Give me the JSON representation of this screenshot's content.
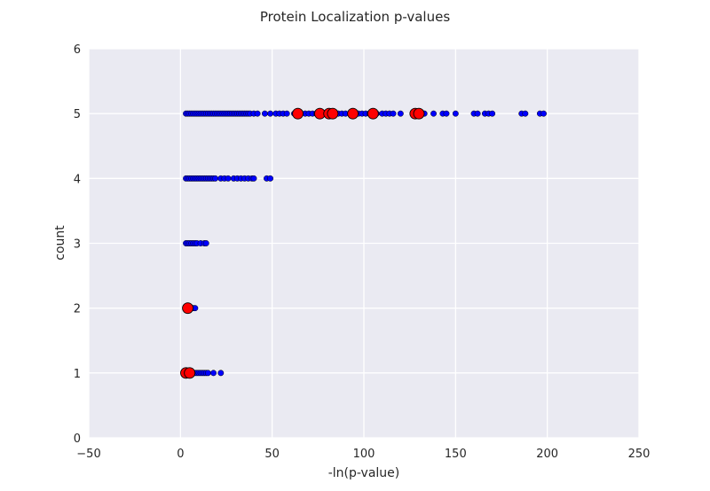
{
  "chart_data": {
    "type": "scatter",
    "title": "Protein Localization p-values",
    "xlabel": "-ln(p-value)",
    "ylabel": "count",
    "xlim": [
      -50,
      250
    ],
    "ylim": [
      0,
      6
    ],
    "xticks": [
      "−50",
      "0",
      "50",
      "100",
      "150",
      "200",
      "250"
    ],
    "xtick_values": [
      -50,
      0,
      50,
      100,
      150,
      200,
      250
    ],
    "yticks": [
      "0",
      "1",
      "2",
      "3",
      "4",
      "5",
      "6"
    ],
    "ytick_values": [
      0,
      1,
      2,
      3,
      4,
      5,
      6
    ],
    "grid": true,
    "background": "#eaeaf2",
    "series": [
      {
        "color": "#0000ff",
        "marker": "small-circle",
        "points": [
          [
            3,
            5
          ],
          [
            4,
            5
          ],
          [
            5,
            5
          ],
          [
            6,
            5
          ],
          [
            7,
            5
          ],
          [
            8,
            5
          ],
          [
            9,
            5
          ],
          [
            10,
            5
          ],
          [
            11,
            5
          ],
          [
            12,
            5
          ],
          [
            13,
            5
          ],
          [
            14,
            5
          ],
          [
            15,
            5
          ],
          [
            16,
            5
          ],
          [
            17,
            5
          ],
          [
            18,
            5
          ],
          [
            19,
            5
          ],
          [
            20,
            5
          ],
          [
            21,
            5
          ],
          [
            22,
            5
          ],
          [
            23,
            5
          ],
          [
            24,
            5
          ],
          [
            25,
            5
          ],
          [
            26,
            5
          ],
          [
            27,
            5
          ],
          [
            28,
            5
          ],
          [
            29,
            5
          ],
          [
            30,
            5
          ],
          [
            31,
            5
          ],
          [
            32,
            5
          ],
          [
            33,
            5
          ],
          [
            34,
            5
          ],
          [
            35,
            5
          ],
          [
            36,
            5
          ],
          [
            37,
            5
          ],
          [
            38,
            5
          ],
          [
            40,
            5
          ],
          [
            42,
            5
          ],
          [
            46,
            5
          ],
          [
            49,
            5
          ],
          [
            52,
            5
          ],
          [
            54,
            5
          ],
          [
            56,
            5
          ],
          [
            58,
            5
          ],
          [
            62,
            5
          ],
          [
            65,
            5
          ],
          [
            68,
            5
          ],
          [
            70,
            5
          ],
          [
            72,
            5
          ],
          [
            74,
            5
          ],
          [
            78,
            5
          ],
          [
            80,
            5
          ],
          [
            84,
            5
          ],
          [
            86,
            5
          ],
          [
            88,
            5
          ],
          [
            90,
            5
          ],
          [
            95,
            5
          ],
          [
            97,
            5
          ],
          [
            99,
            5
          ],
          [
            101,
            5
          ],
          [
            103,
            5
          ],
          [
            107,
            5
          ],
          [
            110,
            5
          ],
          [
            112,
            5
          ],
          [
            114,
            5
          ],
          [
            116,
            5
          ],
          [
            120,
            5
          ],
          [
            127,
            5
          ],
          [
            130,
            5
          ],
          [
            133,
            5
          ],
          [
            138,
            5
          ],
          [
            143,
            5
          ],
          [
            145,
            5
          ],
          [
            150,
            5
          ],
          [
            160,
            5
          ],
          [
            162,
            5
          ],
          [
            166,
            5
          ],
          [
            168,
            5
          ],
          [
            170,
            5
          ],
          [
            186,
            5
          ],
          [
            188,
            5
          ],
          [
            196,
            5
          ],
          [
            198,
            5
          ],
          [
            3,
            4
          ],
          [
            4,
            4
          ],
          [
            5,
            4
          ],
          [
            6,
            4
          ],
          [
            7,
            4
          ],
          [
            8,
            4
          ],
          [
            9,
            4
          ],
          [
            10,
            4
          ],
          [
            11,
            4
          ],
          [
            12,
            4
          ],
          [
            13,
            4
          ],
          [
            14,
            4
          ],
          [
            15,
            4
          ],
          [
            16,
            4
          ],
          [
            17,
            4
          ],
          [
            18,
            4
          ],
          [
            19,
            4
          ],
          [
            22,
            4
          ],
          [
            24,
            4
          ],
          [
            26,
            4
          ],
          [
            29,
            4
          ],
          [
            31,
            4
          ],
          [
            33,
            4
          ],
          [
            35,
            4
          ],
          [
            37,
            4
          ],
          [
            39,
            4
          ],
          [
            40,
            4
          ],
          [
            47,
            4
          ],
          [
            49,
            4
          ],
          [
            3,
            3
          ],
          [
            4,
            3
          ],
          [
            5,
            3
          ],
          [
            6,
            3
          ],
          [
            7,
            3
          ],
          [
            8,
            3
          ],
          [
            9,
            3
          ],
          [
            11,
            3
          ],
          [
            13,
            3
          ],
          [
            14,
            3
          ],
          [
            7,
            2
          ],
          [
            8,
            2
          ],
          [
            5,
            1
          ],
          [
            6,
            1
          ],
          [
            7,
            1
          ],
          [
            8,
            1
          ],
          [
            9,
            1
          ],
          [
            10,
            1
          ],
          [
            11,
            1
          ],
          [
            12,
            1
          ],
          [
            13,
            1
          ],
          [
            14,
            1
          ],
          [
            15,
            1
          ],
          [
            18,
            1
          ],
          [
            22,
            1
          ]
        ]
      },
      {
        "color": "#ff0000",
        "marker": "large-circle",
        "points": [
          [
            64,
            5
          ],
          [
            76,
            5
          ],
          [
            81,
            5
          ],
          [
            83,
            5
          ],
          [
            94,
            5
          ],
          [
            105,
            5
          ],
          [
            128,
            5
          ],
          [
            130,
            5
          ],
          [
            4,
            2
          ],
          [
            3,
            1
          ],
          [
            5,
            1
          ]
        ]
      }
    ]
  }
}
